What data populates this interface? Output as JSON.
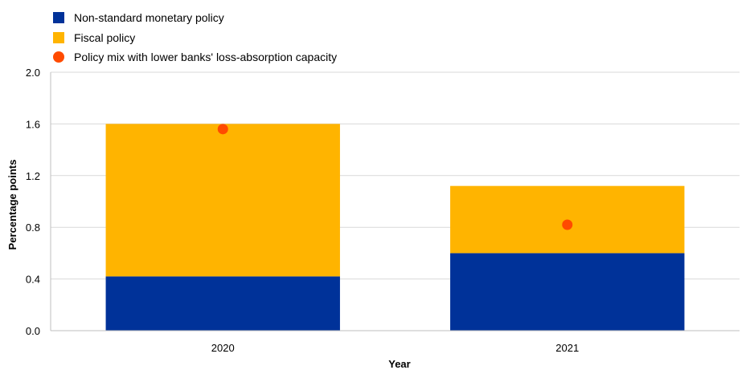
{
  "chart_data": {
    "type": "bar",
    "stacked": true,
    "categories": [
      "2020",
      "2021"
    ],
    "series": [
      {
        "name": "Non-standard monetary policy",
        "values": [
          0.42,
          0.6
        ],
        "color": "#003299"
      },
      {
        "name": "Fiscal policy",
        "values": [
          1.18,
          0.52
        ],
        "color": "#FFB400"
      }
    ],
    "points": {
      "name": "Policy mix with lower banks' loss-absorption capacity",
      "values": [
        1.56,
        0.82
      ],
      "color": "#FF4B00"
    },
    "xlabel": "Year",
    "ylabel": "Percentage points",
    "ylim": [
      0,
      2.0
    ],
    "yticks": [
      "0.0",
      "0.4",
      "0.8",
      "1.2",
      "1.6",
      "2.0"
    ],
    "grid": true,
    "legend_position": "top-left"
  }
}
